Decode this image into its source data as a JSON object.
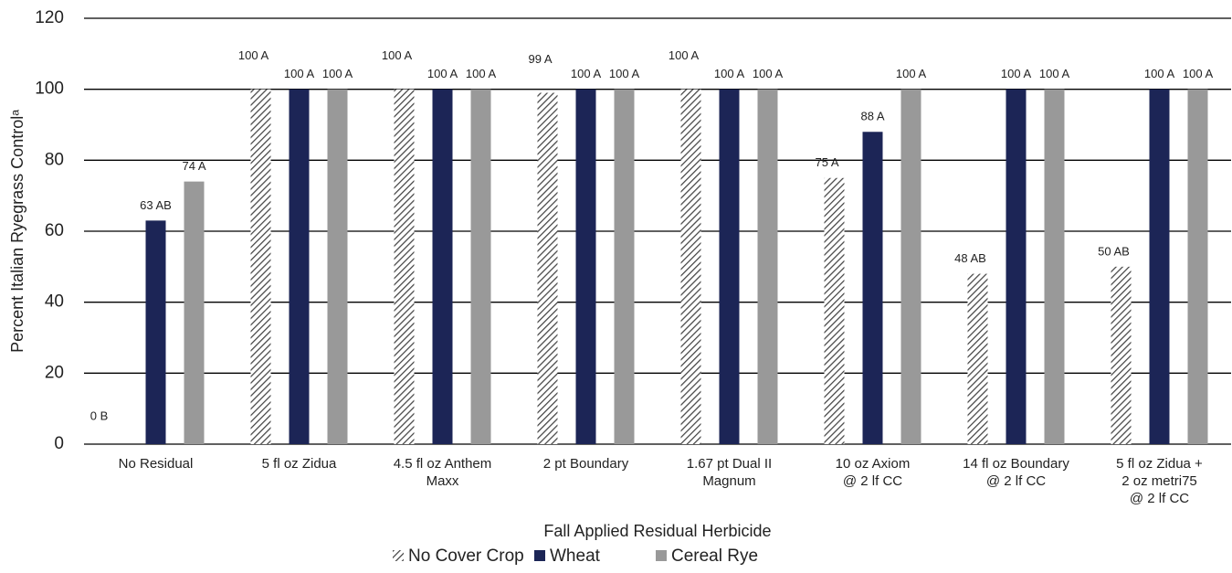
{
  "chart_data": {
    "type": "bar",
    "y_label": "Percent Italian Ryegrass Controlᵃ",
    "x_label": "Fall Applied Residual Herbicide",
    "categories": [
      "No Residual",
      "5 fl oz Zidua",
      "4.5 fl oz Anthem\nMaxx",
      "2 pt Boundary",
      "1.67 pt Dual II\nMagnum",
      "10 oz Axiom\n@ 2  lf CC",
      "14 fl oz Boundary\n@ 2 lf CC",
      "5 fl oz Zidua +\n2 oz metri75\n@ 2 lf CC"
    ],
    "series": [
      {
        "name": "No Cover Crop",
        "color": "#444444",
        "pattern": "hatch",
        "values": [
          0,
          100,
          100,
          99,
          100,
          75,
          48,
          50
        ],
        "value_labels": [
          "0 B",
          "100 A",
          "100 A",
          "99 A",
          "100 A",
          "75 A",
          "48 AB",
          "50 AB"
        ]
      },
      {
        "name": "Wheat",
        "color": "#1c2556",
        "values": [
          63,
          100,
          100,
          100,
          100,
          88,
          100,
          100
        ],
        "value_labels": [
          "63 AB",
          "100 A",
          "100 A",
          "100 A",
          "100 A",
          "88 A",
          "100 A",
          "100 A"
        ]
      },
      {
        "name": "Cereal Rye",
        "color": "#999999",
        "values": [
          74,
          100,
          100,
          100,
          100,
          100,
          100,
          100
        ],
        "value_labels": [
          "74 A",
          "100 A",
          "100 A",
          "100 A",
          "100 A",
          "100 A",
          "100 A",
          "100 A"
        ]
      }
    ],
    "ylim": [
      0,
      120
    ],
    "yticks": [
      0,
      20,
      40,
      60,
      80,
      100,
      120
    ],
    "grid": true,
    "legend": "bottom"
  }
}
